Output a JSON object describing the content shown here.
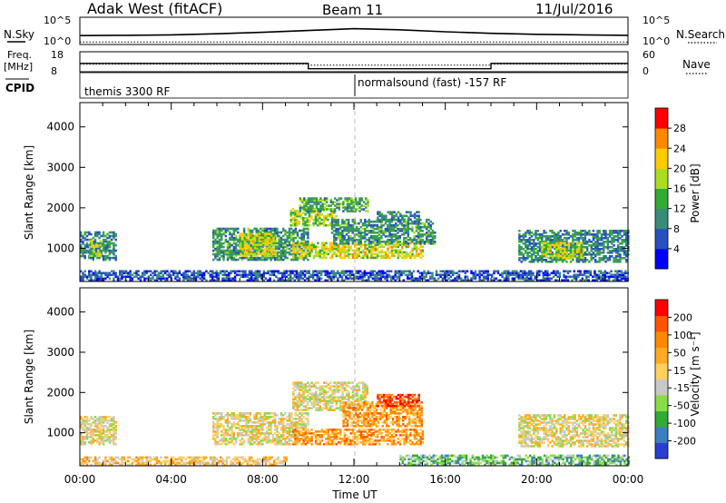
{
  "header": {
    "station": "Adak West (fitACF)",
    "beam": "Beam 11",
    "date": "11/Jul/2016"
  },
  "top_panels": {
    "nsky_label": "N.Sky",
    "nsearch_label": "N.Search",
    "freq_label_1": "Freq.",
    "freq_label_2": "[MHz]",
    "nave_label": "Nave",
    "cpid_label": "CPID",
    "nsky_ticks": [
      "10^5",
      "10^0"
    ],
    "nsearch_ticks": [
      "10^5",
      "10^0"
    ],
    "freq_ticks": [
      "18",
      "8"
    ],
    "nave_ticks": [
      "60",
      "0"
    ],
    "cpid_segments": [
      {
        "start_hour": 0,
        "end_hour": 12,
        "label": "themis 3300 RF"
      },
      {
        "start_hour": 12,
        "end_hour": 24,
        "label": "normalsound (fast) -157 RF"
      }
    ]
  },
  "chart_data": [
    {
      "type": "line",
      "name": "noise",
      "x_range": [
        0,
        24
      ],
      "series": [
        {
          "name": "N.Sky",
          "style": "solid",
          "x": [
            0,
            2,
            4,
            6,
            8,
            10,
            12,
            14,
            16,
            18,
            20,
            22,
            24
          ],
          "values": [
            0.35,
            0.36,
            0.38,
            0.42,
            0.48,
            0.55,
            0.62,
            0.58,
            0.5,
            0.44,
            0.4,
            0.38,
            0.36
          ]
        },
        {
          "name": "N.Search",
          "style": "dotted",
          "x": [
            0,
            24
          ],
          "values": [
            0.1,
            0.1
          ]
        }
      ]
    },
    {
      "type": "line",
      "name": "frequency",
      "x_range": [
        0,
        24
      ],
      "series": [
        {
          "name": "Freq.",
          "style": "solid",
          "x": [
            0,
            10,
            10,
            18,
            18,
            24
          ],
          "values": [
            12.2,
            12.2,
            9.5,
            9.5,
            12.2,
            12.2
          ]
        },
        {
          "name": "Nave",
          "style": "dotted",
          "x": [
            0,
            10,
            10,
            18,
            18,
            24
          ],
          "values": [
            23,
            23,
            20,
            20,
            23,
            23
          ]
        }
      ]
    },
    {
      "type": "heatmap",
      "name": "power",
      "xlabel": "",
      "ylabel": "Slant Range [km]",
      "x_range": [
        0,
        24
      ],
      "ylim": [
        180,
        4600
      ],
      "y_ticks": [
        1000,
        2000,
        3000,
        4000
      ],
      "colorbar": {
        "label": "Power [dB]",
        "range": [
          0,
          32
        ],
        "ticks": [
          4,
          8,
          12,
          16,
          20,
          24,
          28
        ],
        "colors": [
          "#0000ff",
          "#2a4fbf",
          "#3a8c7a",
          "#33aa33",
          "#aadd22",
          "#ffcc00",
          "#ff8800",
          "#ff0000"
        ]
      },
      "regions": [
        {
          "t0": 0.0,
          "t1": 1.6,
          "r0": 700,
          "r1": 1400,
          "level": 0.3
        },
        {
          "t0": 0.4,
          "t1": 0.9,
          "r0": 800,
          "r1": 1200,
          "level": 0.55
        },
        {
          "t0": 5.8,
          "t1": 10.0,
          "r0": 700,
          "r1": 1500,
          "level": 0.35
        },
        {
          "t0": 7.0,
          "t1": 8.6,
          "r0": 800,
          "r1": 1350,
          "level": 0.6
        },
        {
          "t0": 9.2,
          "t1": 11.2,
          "r0": 1550,
          "r1": 2000,
          "level": 0.55
        },
        {
          "t0": 9.6,
          "t1": 12.6,
          "r0": 1900,
          "r1": 2250,
          "level": 0.4
        },
        {
          "t0": 9.3,
          "t1": 15.0,
          "r0": 750,
          "r1": 1150,
          "level": 0.62
        },
        {
          "t0": 11.0,
          "t1": 15.5,
          "r0": 1100,
          "r1": 1700,
          "level": 0.35
        },
        {
          "t0": 13.0,
          "t1": 14.8,
          "r0": 1650,
          "r1": 1900,
          "level": 0.3
        },
        {
          "t0": 19.2,
          "t1": 24.0,
          "r0": 650,
          "r1": 1450,
          "level": 0.3
        },
        {
          "t0": 20.2,
          "t1": 22.0,
          "r0": 750,
          "r1": 1150,
          "level": 0.6
        },
        {
          "t0": 0.0,
          "t1": 24.0,
          "r0": 190,
          "r1": 420,
          "level": 0.2
        }
      ]
    },
    {
      "type": "heatmap",
      "name": "velocity",
      "xlabel": "Time UT",
      "ylabel": "Slant Range [km]",
      "x_range": [
        0,
        24
      ],
      "ylim": [
        180,
        4600
      ],
      "x_ticks": [
        "00:00",
        "04:00",
        "08:00",
        "12:00",
        "16:00",
        "20:00",
        "00:00"
      ],
      "y_ticks": [
        1000,
        2000,
        3000,
        4000
      ],
      "colorbar": {
        "label": "Velocity [m s⁻¹]",
        "range": [
          -250,
          250
        ],
        "ticks": [
          200,
          100,
          50,
          15,
          -15,
          -50,
          -100,
          -200
        ],
        "colors": [
          "#ff0000",
          "#ff5500",
          "#ff8800",
          "#ffaa22",
          "#ffd060",
          "#c8c8c8",
          "#88dd44",
          "#33aa33",
          "#3a7fbf",
          "#2a3fcf"
        ]
      },
      "regions": [
        {
          "t0": 0.0,
          "t1": 1.6,
          "r0": 700,
          "r1": 1400,
          "level": 0.5
        },
        {
          "t0": 5.8,
          "t1": 10.0,
          "r0": 700,
          "r1": 1500,
          "level": 0.5
        },
        {
          "t0": 9.3,
          "t1": 12.6,
          "r0": 1550,
          "r1": 2250,
          "level": 0.5
        },
        {
          "t0": 9.3,
          "t1": 15.0,
          "r0": 700,
          "r1": 1100,
          "level": 0.3
        },
        {
          "t0": 11.5,
          "t1": 15.0,
          "r0": 1150,
          "r1": 1750,
          "level": 0.32
        },
        {
          "t0": 13.0,
          "t1": 14.8,
          "r0": 1650,
          "r1": 1950,
          "level": 0.15
        },
        {
          "t0": 19.2,
          "t1": 24.0,
          "r0": 650,
          "r1": 1450,
          "level": 0.5
        },
        {
          "t0": 14.0,
          "t1": 24.0,
          "r0": 190,
          "r1": 420,
          "level": 0.7
        },
        {
          "t0": 0.0,
          "t1": 9.0,
          "r0": 190,
          "r1": 380,
          "level": 0.42
        }
      ]
    }
  ]
}
